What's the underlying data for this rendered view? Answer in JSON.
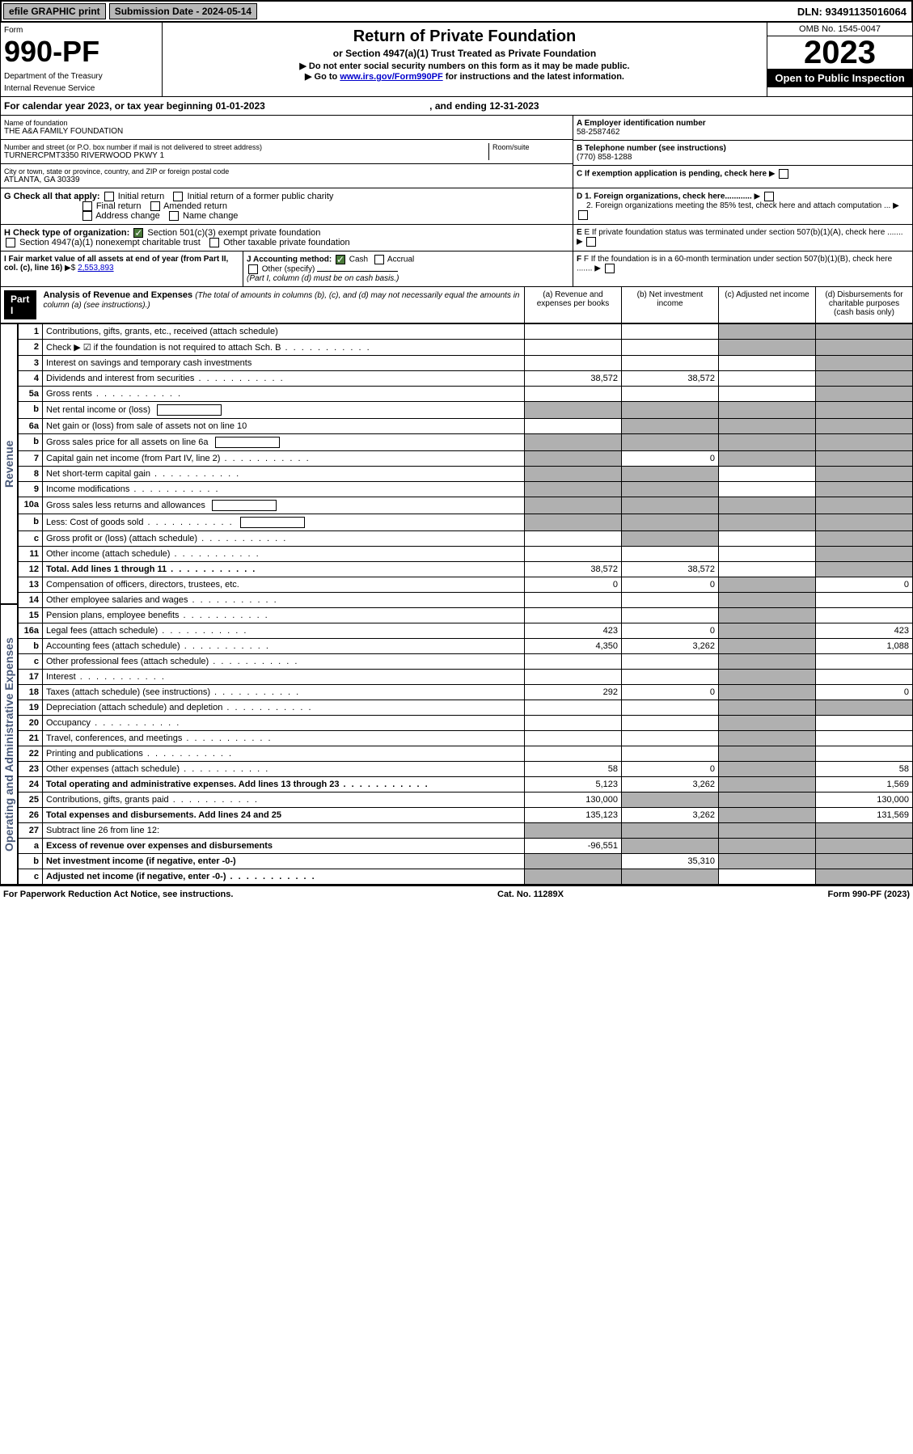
{
  "top": {
    "efile": "efile GRAPHIC print",
    "submission": "Submission Date - 2024-05-14",
    "dln": "DLN: 93491135016064"
  },
  "header": {
    "form_label": "Form",
    "form_num": "990-PF",
    "dept": "Department of the Treasury",
    "irs": "Internal Revenue Service",
    "title": "Return of Private Foundation",
    "subtitle": "or Section 4947(a)(1) Trust Treated as Private Foundation",
    "instr1": "▶ Do not enter social security numbers on this form as it may be made public.",
    "instr2_pre": "▶ Go to ",
    "instr2_link": "www.irs.gov/Form990PF",
    "instr2_post": " for instructions and the latest information.",
    "omb": "OMB No. 1545-0047",
    "year": "2023",
    "open": "Open to Public Inspection"
  },
  "cal_year": {
    "pre": "For calendar year 2023, or tax year beginning ",
    "begin": "01-01-2023",
    "mid": " , and ending ",
    "end": "12-31-2023"
  },
  "info": {
    "name_label": "Name of foundation",
    "name": "THE A&A FAMILY FOUNDATION",
    "addr_label": "Number and street (or P.O. box number if mail is not delivered to street address)",
    "addr": "TURNERCPMT3350 RIVERWOOD PKWY 1",
    "room_label": "Room/suite",
    "city_label": "City or town, state or province, country, and ZIP or foreign postal code",
    "city": "ATLANTA, GA  30339",
    "a_label": "A Employer identification number",
    "a_val": "58-2587462",
    "b_label": "B Telephone number (see instructions)",
    "b_val": "(770) 858-1288",
    "c_label": "C If exemption application is pending, check here",
    "d1": "D 1. Foreign organizations, check here............",
    "d2": "2. Foreign organizations meeting the 85% test, check here and attach computation ...",
    "e": "E  If private foundation status was terminated under section 507(b)(1)(A), check here .......",
    "f": "F  If the foundation is in a 60-month termination under section 507(b)(1)(B), check here ......."
  },
  "g": {
    "label": "G Check all that apply:",
    "opts": [
      "Initial return",
      "Initial return of a former public charity",
      "Final return",
      "Amended return",
      "Address change",
      "Name change"
    ]
  },
  "h": {
    "label": "H Check type of organization:",
    "opt1": "Section 501(c)(3) exempt private foundation",
    "opt2": "Section 4947(a)(1) nonexempt charitable trust",
    "opt3": "Other taxable private foundation"
  },
  "i": {
    "label": "I Fair market value of all assets at end of year (from Part II, col. (c), line 16)",
    "arrow": "▶$",
    "val": "2,553,893"
  },
  "j": {
    "label": "J Accounting method:",
    "cash": "Cash",
    "accrual": "Accrual",
    "other": "Other (specify)",
    "note": "(Part I, column (d) must be on cash basis.)"
  },
  "part1": {
    "label": "Part I",
    "title": "Analysis of Revenue and Expenses",
    "desc": "(The total of amounts in columns (b), (c), and (d) may not necessarily equal the amounts in column (a) (see instructions).)",
    "col_a": "(a)   Revenue and expenses per books",
    "col_b": "(b)  Net investment income",
    "col_c": "(c)  Adjusted net income",
    "col_d": "(d)  Disbursements for charitable purposes (cash basis only)"
  },
  "side": {
    "revenue": "Revenue",
    "expenses": "Operating and Administrative Expenses"
  },
  "rows": [
    {
      "n": "1",
      "d": "Contributions, gifts, grants, etc., received (attach schedule)",
      "a": "",
      "b": "",
      "c": "s",
      "dd": "s"
    },
    {
      "n": "2",
      "d": "Check ▶ ☑ if the foundation is not required to attach Sch. B",
      "dots": true,
      "a": "",
      "b": "",
      "c": "s",
      "dd": "s"
    },
    {
      "n": "3",
      "d": "Interest on savings and temporary cash investments",
      "a": "",
      "b": "",
      "c": "",
      "dd": "s"
    },
    {
      "n": "4",
      "d": "Dividends and interest from securities",
      "dots": true,
      "a": "38,572",
      "b": "38,572",
      "c": "",
      "dd": "s"
    },
    {
      "n": "5a",
      "d": "Gross rents",
      "dots": true,
      "a": "",
      "b": "",
      "c": "",
      "dd": "s"
    },
    {
      "n": "b",
      "d": "Net rental income or (loss)",
      "box": true,
      "a": "s",
      "b": "s",
      "c": "s",
      "dd": "s"
    },
    {
      "n": "6a",
      "d": "Net gain or (loss) from sale of assets not on line 10",
      "a": "",
      "b": "s",
      "c": "s",
      "dd": "s"
    },
    {
      "n": "b",
      "d": "Gross sales price for all assets on line 6a",
      "box": true,
      "a": "s",
      "b": "s",
      "c": "s",
      "dd": "s"
    },
    {
      "n": "7",
      "d": "Capital gain net income (from Part IV, line 2)",
      "dots": true,
      "a": "s",
      "b": "0",
      "c": "s",
      "dd": "s"
    },
    {
      "n": "8",
      "d": "Net short-term capital gain",
      "dots": true,
      "a": "s",
      "b": "s",
      "c": "",
      "dd": "s"
    },
    {
      "n": "9",
      "d": "Income modifications",
      "dots": true,
      "a": "s",
      "b": "s",
      "c": "",
      "dd": "s"
    },
    {
      "n": "10a",
      "d": "Gross sales less returns and allowances",
      "box": true,
      "a": "s",
      "b": "s",
      "c": "s",
      "dd": "s"
    },
    {
      "n": "b",
      "d": "Less: Cost of goods sold",
      "dots": true,
      "box": true,
      "a": "s",
      "b": "s",
      "c": "s",
      "dd": "s"
    },
    {
      "n": "c",
      "d": "Gross profit or (loss) (attach schedule)",
      "dots": true,
      "a": "",
      "b": "s",
      "c": "",
      "dd": "s"
    },
    {
      "n": "11",
      "d": "Other income (attach schedule)",
      "dots": true,
      "a": "",
      "b": "",
      "c": "",
      "dd": "s"
    },
    {
      "n": "12",
      "d": "Total. Add lines 1 through 11",
      "dots": true,
      "bold": true,
      "a": "38,572",
      "b": "38,572",
      "c": "",
      "dd": "s"
    },
    {
      "n": "13",
      "d": "Compensation of officers, directors, trustees, etc.",
      "a": "0",
      "b": "0",
      "c": "s",
      "dd": "0"
    },
    {
      "n": "14",
      "d": "Other employee salaries and wages",
      "dots": true,
      "a": "",
      "b": "",
      "c": "s",
      "dd": ""
    },
    {
      "n": "15",
      "d": "Pension plans, employee benefits",
      "dots": true,
      "a": "",
      "b": "",
      "c": "s",
      "dd": ""
    },
    {
      "n": "16a",
      "d": "Legal fees (attach schedule)",
      "dots": true,
      "a": "423",
      "b": "0",
      "c": "s",
      "dd": "423"
    },
    {
      "n": "b",
      "d": "Accounting fees (attach schedule)",
      "dots": true,
      "a": "4,350",
      "b": "3,262",
      "c": "s",
      "dd": "1,088"
    },
    {
      "n": "c",
      "d": "Other professional fees (attach schedule)",
      "dots": true,
      "a": "",
      "b": "",
      "c": "s",
      "dd": ""
    },
    {
      "n": "17",
      "d": "Interest",
      "dots": true,
      "a": "",
      "b": "",
      "c": "s",
      "dd": ""
    },
    {
      "n": "18",
      "d": "Taxes (attach schedule) (see instructions)",
      "dots": true,
      "a": "292",
      "b": "0",
      "c": "s",
      "dd": "0"
    },
    {
      "n": "19",
      "d": "Depreciation (attach schedule) and depletion",
      "dots": true,
      "a": "",
      "b": "",
      "c": "s",
      "dd": "s"
    },
    {
      "n": "20",
      "d": "Occupancy",
      "dots": true,
      "a": "",
      "b": "",
      "c": "s",
      "dd": ""
    },
    {
      "n": "21",
      "d": "Travel, conferences, and meetings",
      "dots": true,
      "a": "",
      "b": "",
      "c": "s",
      "dd": ""
    },
    {
      "n": "22",
      "d": "Printing and publications",
      "dots": true,
      "a": "",
      "b": "",
      "c": "s",
      "dd": ""
    },
    {
      "n": "23",
      "d": "Other expenses (attach schedule)",
      "dots": true,
      "a": "58",
      "b": "0",
      "c": "s",
      "dd": "58"
    },
    {
      "n": "24",
      "d": "Total operating and administrative expenses. Add lines 13 through 23",
      "dots": true,
      "bold": true,
      "a": "5,123",
      "b": "3,262",
      "c": "s",
      "dd": "1,569"
    },
    {
      "n": "25",
      "d": "Contributions, gifts, grants paid",
      "dots": true,
      "a": "130,000",
      "b": "s",
      "c": "s",
      "dd": "130,000"
    },
    {
      "n": "26",
      "d": "Total expenses and disbursements. Add lines 24 and 25",
      "bold": true,
      "a": "135,123",
      "b": "3,262",
      "c": "s",
      "dd": "131,569"
    },
    {
      "n": "27",
      "d": "Subtract line 26 from line 12:",
      "a": "s",
      "b": "s",
      "c": "s",
      "dd": "s"
    },
    {
      "n": "a",
      "d": "Excess of revenue over expenses and disbursements",
      "bold": true,
      "a": "-96,551",
      "b": "s",
      "c": "s",
      "dd": "s"
    },
    {
      "n": "b",
      "d": "Net investment income (if negative, enter -0-)",
      "bold": true,
      "a": "s",
      "b": "35,310",
      "c": "s",
      "dd": "s"
    },
    {
      "n": "c",
      "d": "Adjusted net income (if negative, enter -0-)",
      "dots": true,
      "bold": true,
      "a": "s",
      "b": "s",
      "c": "",
      "dd": "s"
    }
  ],
  "footer": {
    "left": "For Paperwork Reduction Act Notice, see instructions.",
    "mid": "Cat. No. 11289X",
    "right": "Form 990-PF (2023)"
  },
  "colors": {
    "header_bg": "#000000",
    "shaded": "#b0b0b0",
    "link": "#0000cc",
    "check_green": "#4a7a3a",
    "side_text": "#4a5a7a"
  }
}
